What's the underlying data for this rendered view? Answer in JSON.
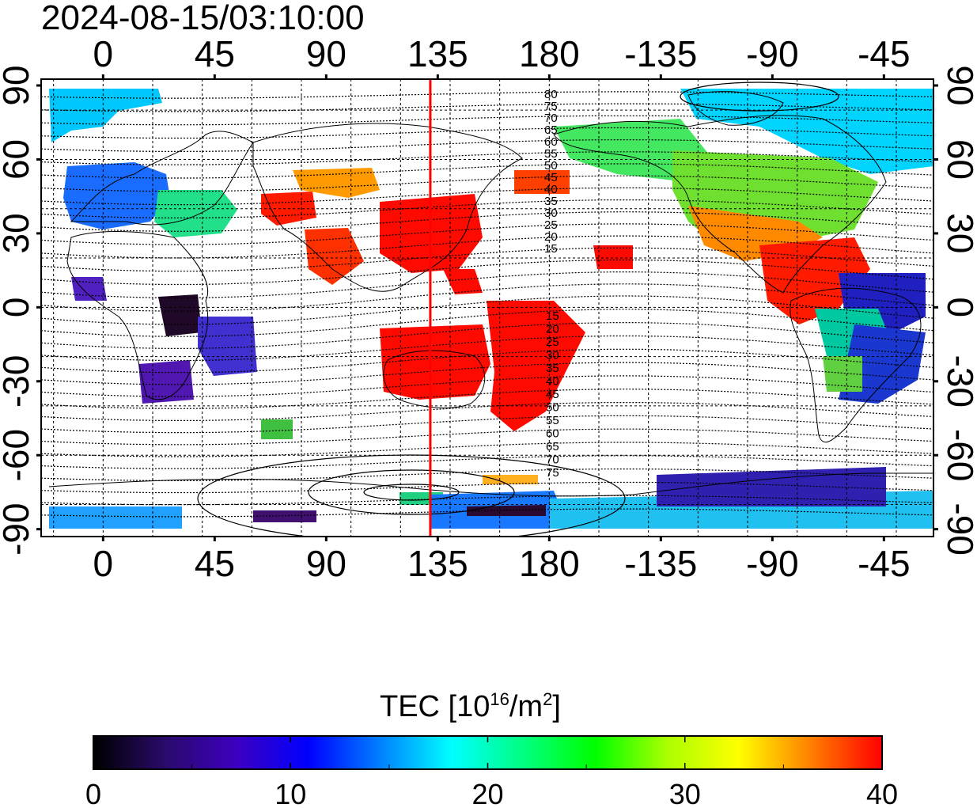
{
  "timestamp": "2024-08-15/03:10:00",
  "map": {
    "lon_ticks_top": [
      "0",
      "45",
      "90",
      "135",
      "180",
      "-135",
      "-90",
      "-45"
    ],
    "lon_ticks_bottom": [
      "0",
      "45",
      "90",
      "135",
      "180",
      "-135",
      "-90",
      "-45"
    ],
    "lat_ticks_left": [
      "90",
      "60",
      "30",
      "0",
      "-30",
      "-60",
      "-90"
    ],
    "lat_ticks_right": [
      "90",
      "60",
      "30",
      "0",
      "-30",
      "-60",
      "-90"
    ],
    "terminator_longitude": 132,
    "contour_labels_north": [
      "80",
      "75",
      "70",
      "65",
      "60",
      "55",
      "50",
      "45",
      "40",
      "35",
      "30",
      "25",
      "20",
      "15"
    ],
    "contour_labels_south": [
      "15",
      "20",
      "25",
      "30",
      "35",
      "40",
      "45",
      "50",
      "55",
      "60",
      "65",
      "70",
      "75"
    ],
    "colors": {
      "terminator": "#ff0000"
    }
  },
  "colorbar": {
    "title_main": "TEC  [10",
    "title_sup1": "16",
    "title_mid": "/m",
    "title_sup2": "2",
    "title_end": "]",
    "min": 0,
    "max": 40,
    "ticks": [
      "0",
      "10",
      "20",
      "30",
      "40"
    ],
    "stops": [
      "#000000",
      "#2a0a6a",
      "#3c00c0",
      "#0000ff",
      "#0080ff",
      "#00ffff",
      "#00ff80",
      "#00ff00",
      "#aaff00",
      "#ffff00",
      "#ff8000",
      "#ff0000"
    ]
  }
}
